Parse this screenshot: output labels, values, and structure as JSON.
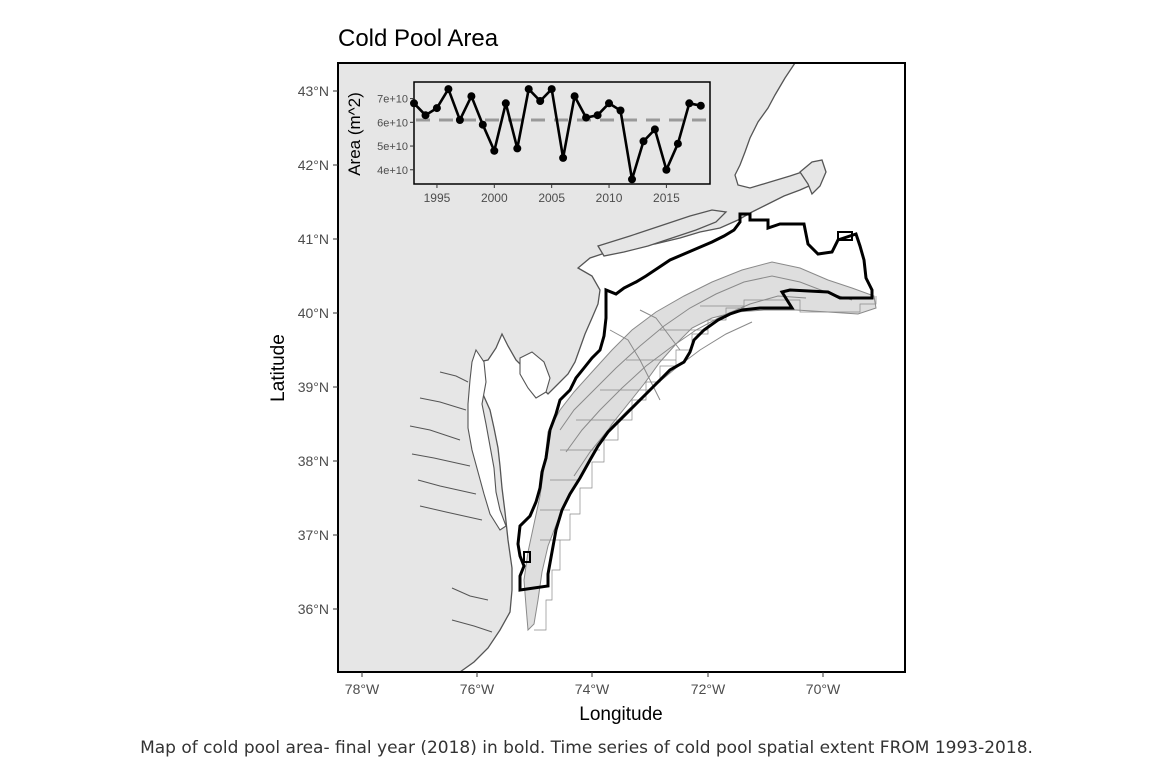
{
  "title": "Cold Pool Area",
  "caption": "Map of cold pool area- final year (2018) in bold. Time series of cold pool spatial extent FROM 1993-2018.",
  "map": {
    "xlabel": "Longitude",
    "ylabel": "Latitude",
    "lon_ticks": [
      "78°W",
      "76°W",
      "74°W",
      "72°W",
      "70°W"
    ],
    "lat_ticks": [
      "43°N",
      "42°N",
      "41°N",
      "40°N",
      "39°N",
      "38°N",
      "37°N",
      "36°N"
    ],
    "colors": {
      "land": "#e6e6e6",
      "coast": "#555555",
      "final_year": "#000000",
      "other_years": "#888888"
    }
  },
  "chart_data": {
    "type": "line",
    "title": "",
    "xlabel": "",
    "ylabel": "Area (m^2)",
    "x": [
      1993,
      1994,
      1995,
      1996,
      1997,
      1998,
      1999,
      2000,
      2001,
      2002,
      2003,
      2004,
      2005,
      2006,
      2007,
      2008,
      2009,
      2010,
      2011,
      2012,
      2013,
      2014,
      2015,
      2016,
      2017,
      2018
    ],
    "values": [
      68000000000.0,
      63000000000.0,
      66000000000.0,
      74000000000.0,
      61000000000.0,
      71000000000.0,
      59000000000.0,
      48000000000.0,
      68000000000.0,
      49000000000.0,
      74000000000.0,
      69000000000.0,
      74000000000.0,
      45000000000.0,
      71000000000.0,
      62000000000.0,
      63000000000.0,
      68000000000.0,
      65000000000.0,
      36000000000.0,
      52000000000.0,
      57000000000.0,
      40000000000.0,
      51000000000.0,
      68000000000.0,
      67000000000.0
    ],
    "mean": 61000000000.0,
    "xticks": [
      "1995",
      "2000",
      "2005",
      "2010",
      "2015"
    ],
    "yticks": [
      "4e+10",
      "5e+10",
      "6e+10",
      "7e+10"
    ],
    "xlim": [
      1993,
      2018.8
    ],
    "ylim": [
      34000000000.0,
      77000000000.0
    ],
    "colors": {
      "line": "#000000",
      "mean": "#999999"
    }
  }
}
